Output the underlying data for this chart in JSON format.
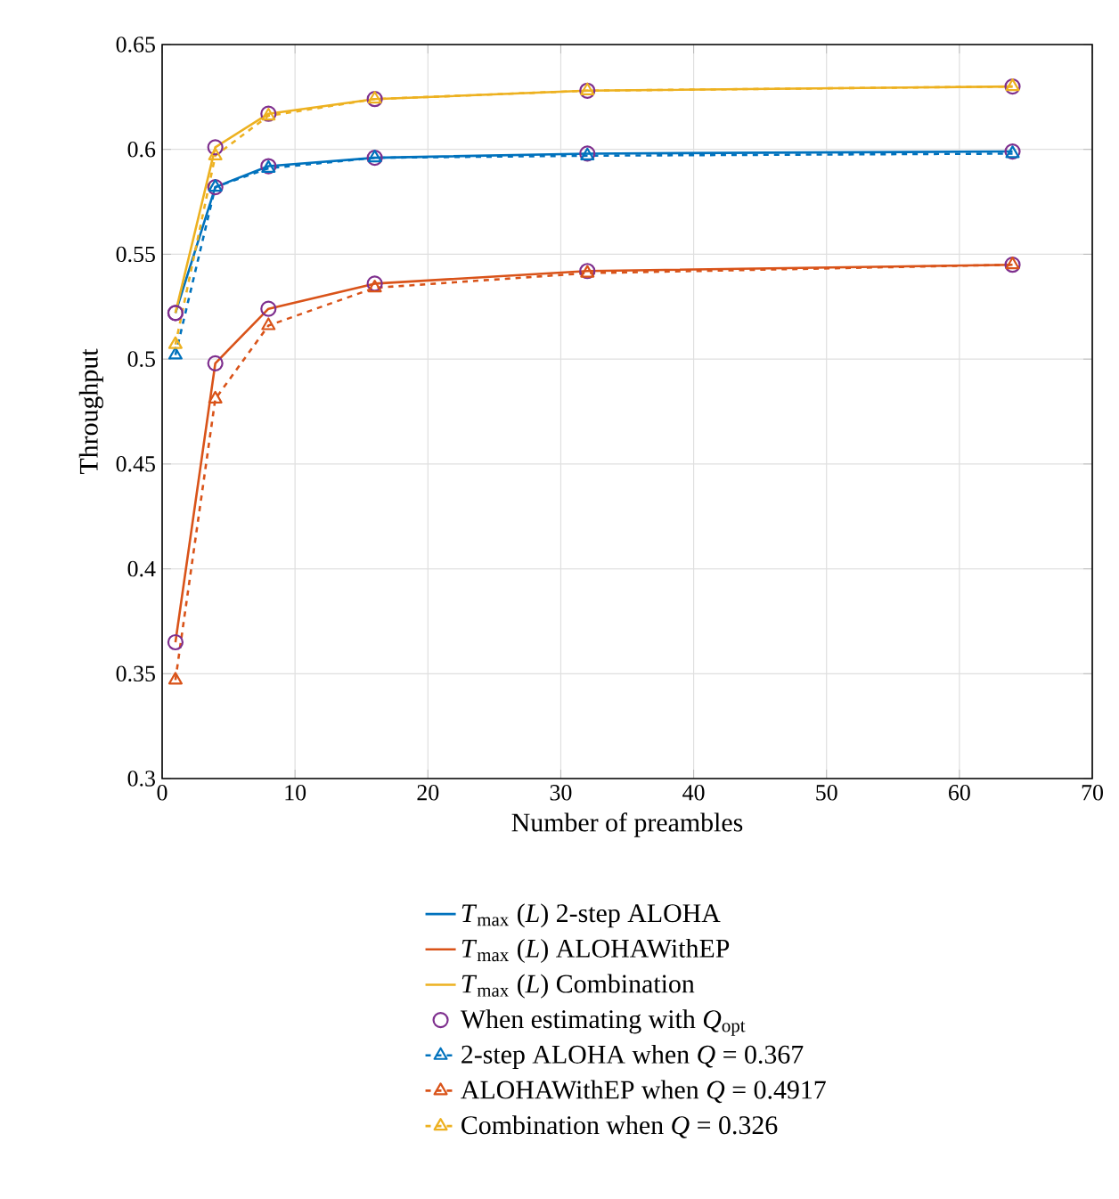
{
  "chart_data": {
    "type": "line",
    "xlabel": "Number of preambles",
    "ylabel": "Throughput",
    "x": [
      1,
      4,
      8,
      16,
      32,
      64
    ],
    "series": [
      {
        "name": "*T*$_{max}$ (*L*) 2-step ALOHA",
        "color": "#0072bd",
        "line_style": "solid",
        "values": [
          0.522,
          0.582,
          0.592,
          0.596,
          0.598,
          0.599
        ]
      },
      {
        "name": "*T*$_{max}$ (*L*) ALOHAWithEP",
        "color": "#d95319",
        "line_style": "solid",
        "values": [
          0.365,
          0.498,
          0.524,
          0.536,
          0.542,
          0.545
        ]
      },
      {
        "name": "*T*$_{max}$ (*L*) Combination",
        "color": "#edb120",
        "line_style": "solid",
        "values": [
          0.522,
          0.601,
          0.617,
          0.624,
          0.628,
          0.63
        ]
      },
      {
        "name": "When estimating with *Q*$_{opt}$",
        "type": "scatter",
        "color": "#7e2f8e",
        "marker": "circle",
        "x": [
          1,
          4,
          8,
          16,
          32,
          64,
          1,
          4,
          8,
          16,
          32,
          64,
          1,
          4,
          8,
          16,
          32,
          64
        ],
        "values": [
          0.522,
          0.582,
          0.592,
          0.596,
          0.598,
          0.599,
          0.365,
          0.498,
          0.524,
          0.536,
          0.542,
          0.545,
          0.522,
          0.601,
          0.617,
          0.624,
          0.628,
          0.63
        ]
      },
      {
        "name": "2-step ALOHA when *Q* = 0.367",
        "color": "#0072bd",
        "line_style": "dashed",
        "marker": "triangle",
        "values": [
          0.502,
          0.582,
          0.591,
          0.596,
          0.597,
          0.598
        ]
      },
      {
        "name": "ALOHAWithEP when *Q* = 0.4917",
        "color": "#d95319",
        "line_style": "dashed",
        "marker": "triangle",
        "values": [
          0.347,
          0.481,
          0.516,
          0.534,
          0.541,
          0.545
        ]
      },
      {
        "name": "Combination when *Q* = 0.326",
        "color": "#edb120",
        "line_style": "dashed",
        "marker": "triangle",
        "values": [
          0.507,
          0.597,
          0.616,
          0.624,
          0.628,
          0.63
        ]
      }
    ],
    "xlim": [
      0,
      70
    ],
    "ylim": [
      0.3,
      0.65
    ],
    "xticks": [
      0,
      10,
      20,
      30,
      40,
      50,
      60,
      70
    ],
    "yticks": [
      0.3,
      0.35,
      0.4,
      0.45,
      0.5,
      0.55,
      0.6,
      0.65
    ],
    "grid": true,
    "legend": "bottom"
  }
}
